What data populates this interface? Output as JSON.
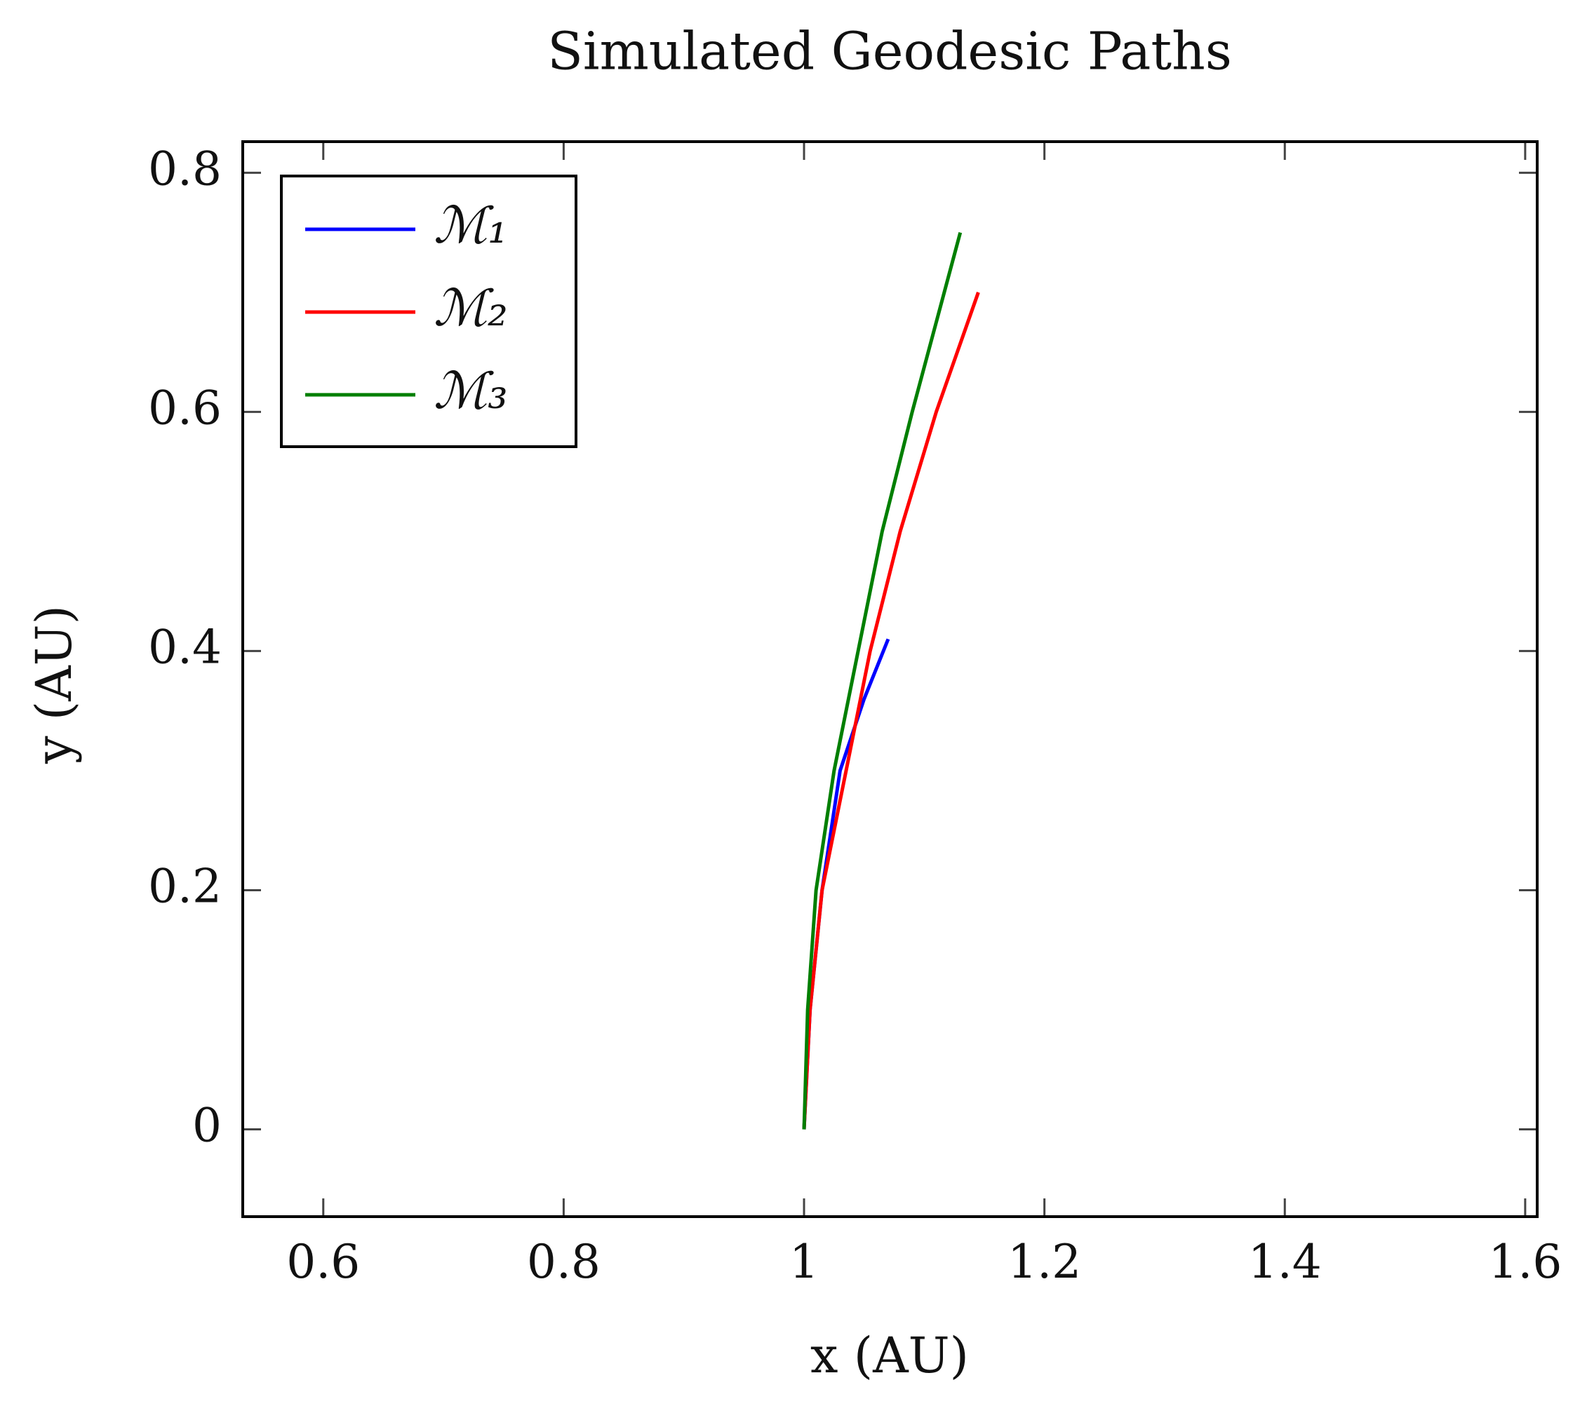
{
  "chart_data": {
    "type": "line",
    "title": "Simulated Geodesic Paths",
    "xlabel": "x (AU)",
    "ylabel": "y (AU)",
    "series": [
      {
        "name": "ℳ₁",
        "color": "#0000ff",
        "x": [
          1,
          1.005,
          1.015,
          1.03,
          1.05,
          1.07
        ],
        "values": [
          0,
          0.1,
          0.2,
          0.3,
          0.36,
          0.41
        ]
      },
      {
        "name": "ℳ₂",
        "color": "#ff0000",
        "x": [
          1,
          1.005,
          1.015,
          1.035,
          1.055,
          1.08,
          1.11,
          1.145
        ],
        "values": [
          0,
          0.1,
          0.2,
          0.3,
          0.4,
          0.5,
          0.6,
          0.7
        ]
      },
      {
        "name": "ℳ₃",
        "color": "#007f00",
        "x": [
          1,
          1.003,
          1.01,
          1.025,
          1.045,
          1.065,
          1.09,
          1.13
        ],
        "values": [
          0,
          0.1,
          0.2,
          0.3,
          0.4,
          0.5,
          0.6,
          0.75
        ]
      }
    ],
    "xlim": [
      0.533,
      1.61
    ],
    "ylim": [
      -0.073,
      0.826
    ],
    "xticks": [
      0.6,
      0.8,
      1,
      1.2,
      1.4,
      1.6
    ],
    "yticks": [
      0,
      0.2,
      0.4,
      0.6,
      0.8
    ],
    "legend": "upper left"
  }
}
